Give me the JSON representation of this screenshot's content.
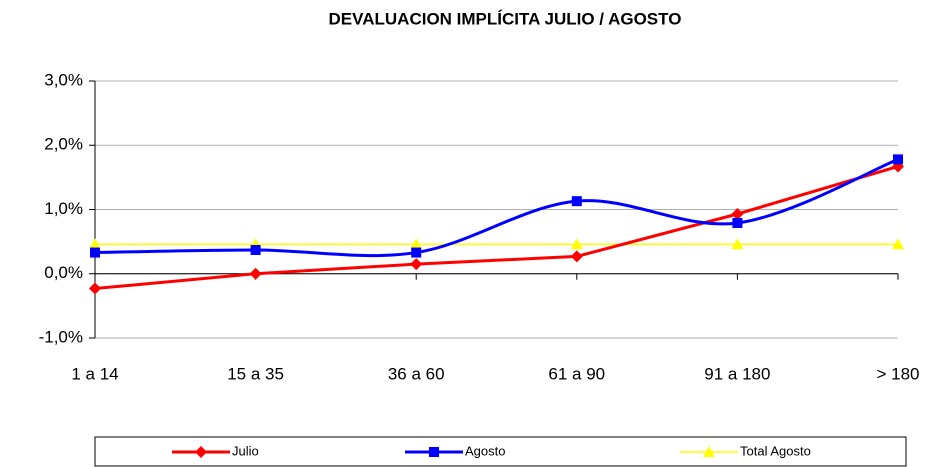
{
  "chart_data": {
    "type": "line",
    "title": "DEVALUACION IMPLÍCITA JULIO / AGOSTO",
    "categories": [
      "1 a 14",
      "15 a 35",
      "36 a 60",
      "61 a 90",
      "91 a 180",
      "> 180"
    ],
    "series": [
      {
        "name": "Julio",
        "color": "#ff0000",
        "marker": "diamond",
        "smooth": false,
        "values": [
          -0.23,
          0.0,
          0.15,
          0.27,
          0.93,
          1.67
        ]
      },
      {
        "name": "Agosto",
        "color": "#0000ff",
        "marker": "square",
        "smooth": true,
        "values": [
          0.33,
          0.37,
          0.33,
          1.13,
          0.79,
          1.78
        ]
      },
      {
        "name": "Total Agosto",
        "color": "#ffff00",
        "marker": "triangle",
        "smooth": false,
        "values": [
          0.46,
          0.46,
          0.46,
          0.46,
          0.46,
          0.46
        ]
      }
    ],
    "ylim": [
      -1.0,
      3.0
    ],
    "yticks": [
      {
        "value": -1.0,
        "label": "-1,0%"
      },
      {
        "value": 0.0,
        "label": "0,0%"
      },
      {
        "value": 1.0,
        "label": "1,0%"
      },
      {
        "value": 2.0,
        "label": "2,0%"
      },
      {
        "value": 3.0,
        "label": "3,0%"
      }
    ],
    "grid": true,
    "legend": "bottom"
  }
}
